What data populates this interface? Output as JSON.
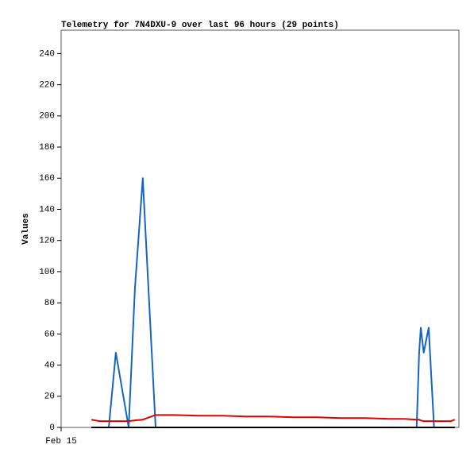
{
  "chart_data": {
    "type": "line",
    "title": "Telemetry for 7N4DXU-9 over last 96 hours (29 points)",
    "y_label": "Values",
    "x": [
      7.3,
      9.2,
      11.5,
      13.2,
      16.3,
      17.8,
      19.7,
      22.8,
      27.4,
      33.1,
      38.9,
      44.6,
      50.4,
      56.1,
      61.9,
      67.6,
      73.4,
      79.1,
      82.9,
      85.8,
      86.4,
      86.8,
      87.5,
      88.7,
      90.0,
      91.5,
      93.0,
      94.0,
      95.0
    ],
    "series": [
      {
        "color": "#1565c0",
        "values": [
          0,
          0,
          0,
          48,
          0,
          89,
          160,
          0,
          0,
          0,
          0,
          0,
          0,
          0,
          0,
          0,
          0,
          0,
          0,
          0,
          48,
          64,
          48,
          64,
          0,
          0,
          0,
          0,
          0
        ]
      },
      {
        "color": "#000000",
        "values": [
          0,
          0,
          0,
          0,
          0,
          0,
          0,
          0,
          0,
          0,
          0,
          0,
          0,
          0,
          0,
          0,
          0,
          0,
          0,
          0,
          0,
          0,
          0,
          0,
          0,
          0,
          0,
          0,
          0
        ]
      },
      {
        "color": "#e00000",
        "values": [
          5,
          4,
          4,
          4,
          4,
          4.5,
          5,
          8,
          8,
          7.5,
          7.5,
          7,
          7,
          6.5,
          6.5,
          6,
          6,
          5.5,
          5.5,
          5,
          5,
          4.5,
          4,
          4,
          4,
          4,
          4,
          4,
          5
        ]
      }
    ],
    "xlim": [
      0,
      96
    ],
    "xticks": [
      {
        "value": 0,
        "label": "Feb 15"
      }
    ],
    "ylim": [
      0,
      255
    ],
    "yticks": [
      0,
      20,
      40,
      60,
      80,
      100,
      120,
      140,
      160,
      180,
      200,
      220,
      240
    ],
    "grid": false
  }
}
